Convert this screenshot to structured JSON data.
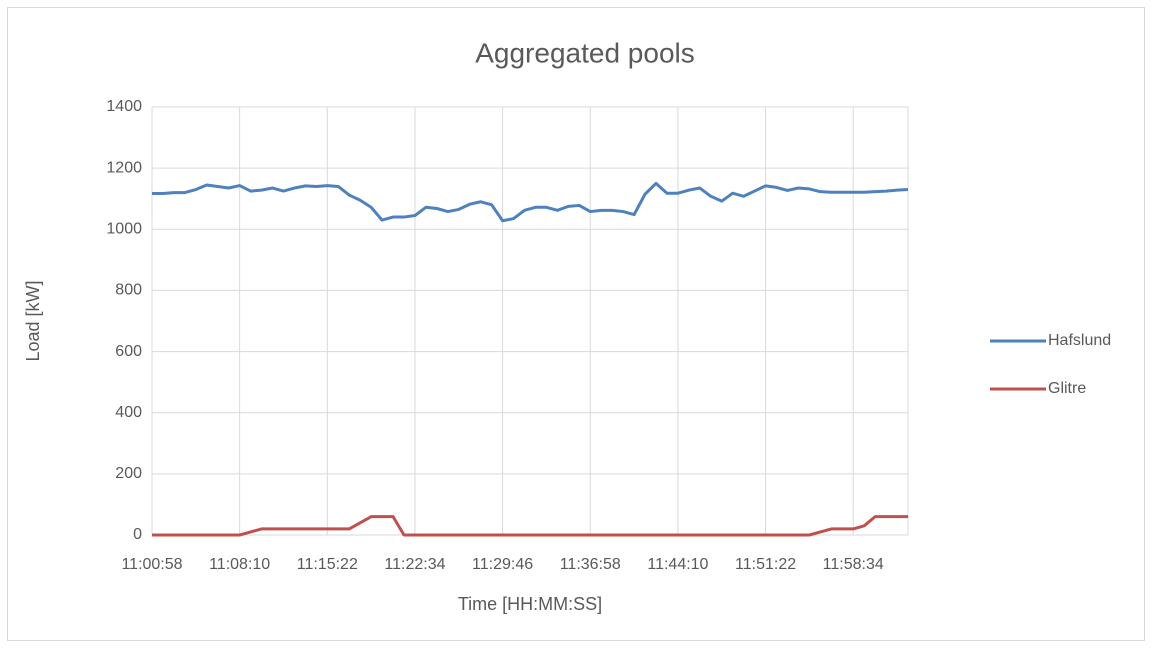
{
  "chart_data": {
    "type": "line",
    "title": "Aggregated pools",
    "x_label": "Time [HH:MM:SS]",
    "y_label": "Load [kW]",
    "categories": [
      "11:00:58",
      null,
      null,
      null,
      null,
      null,
      null,
      null,
      "11:08:10",
      null,
      null,
      null,
      null,
      null,
      null,
      null,
      "11:15:22",
      null,
      null,
      null,
      null,
      null,
      null,
      null,
      "11:22:34",
      null,
      null,
      null,
      null,
      null,
      null,
      null,
      "11:29:46",
      null,
      null,
      null,
      null,
      null,
      null,
      null,
      "11:36:58",
      null,
      null,
      null,
      null,
      null,
      null,
      null,
      "11:44:10",
      null,
      null,
      null,
      null,
      null,
      null,
      null,
      "11:51:22",
      null,
      null,
      null,
      null,
      null,
      null,
      null,
      "11:58:34",
      null,
      null,
      null,
      null,
      null
    ],
    "series": [
      {
        "name": "Hafslund",
        "color": "#4f81bd",
        "values": [
          1117,
          1117,
          1120,
          1120,
          1130,
          1145,
          1140,
          1135,
          1143,
          1125,
          1128,
          1135,
          1125,
          1135,
          1142,
          1140,
          1143,
          1140,
          1112,
          1095,
          1072,
          1030,
          1040,
          1040,
          1045,
          1072,
          1068,
          1058,
          1065,
          1082,
          1090,
          1080,
          1028,
          1035,
          1062,
          1072,
          1072,
          1062,
          1075,
          1078,
          1058,
          1062,
          1062,
          1058,
          1048,
          1115,
          1150,
          1118,
          1118,
          1128,
          1135,
          1108,
          1092,
          1118,
          1108,
          1125,
          1142,
          1137,
          1127,
          1135,
          1132,
          1123,
          1121,
          1121,
          1121,
          1121,
          1123,
          1125,
          1128,
          1130
        ]
      },
      {
        "name": "Glitre",
        "color": "#c0504d",
        "values": [
          0,
          0,
          0,
          0,
          0,
          0,
          0,
          0,
          0,
          10,
          20,
          20,
          20,
          20,
          20,
          20,
          20,
          20,
          20,
          40,
          60,
          60,
          60,
          0,
          0,
          0,
          0,
          0,
          0,
          0,
          0,
          0,
          0,
          0,
          0,
          0,
          0,
          0,
          0,
          0,
          0,
          0,
          0,
          0,
          0,
          0,
          0,
          0,
          0,
          0,
          0,
          0,
          0,
          0,
          0,
          0,
          0,
          0,
          0,
          0,
          0,
          10,
          20,
          20,
          20,
          30,
          60,
          60,
          60,
          60
        ]
      }
    ],
    "ylim": [
      0,
      1400
    ],
    "yticks": [
      0,
      200,
      400,
      600,
      800,
      1000,
      1200,
      1400
    ],
    "grid": true,
    "legend": "right"
  }
}
